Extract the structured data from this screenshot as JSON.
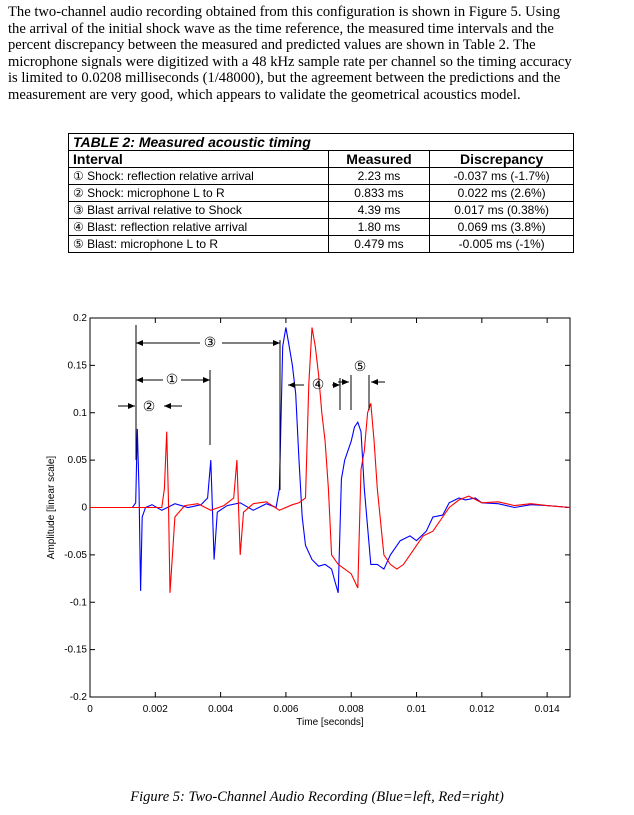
{
  "paragraph": {
    "lines": [
      "The two-channel audio recording obtained from this configuration is shown in Figure 5. Using",
      "the arrival of the initial shock wave as the time reference, the measured time intervals and the",
      "percent discrepancy between the measured and predicted values are shown in Table 2. The",
      "microphone signals were digitized with a 48 kHz sample rate per channel so the timing accuracy",
      "is limited to 0.0208 milliseconds (1/48000), but the agreement between the predictions and the",
      "measurement are very good, which appears to validate the geometrical acoustics model."
    ]
  },
  "table": {
    "title": "TABLE 2:  Measured acoustic timing",
    "columns": [
      "Interval",
      "Measured",
      "Discrepancy"
    ],
    "rows": [
      [
        "① Shock: reflection relative arrival",
        "2.23 ms",
        "-0.037 ms (-1.7%)"
      ],
      [
        "② Shock: microphone L to R",
        "0.833 ms",
        "0.022 ms (2.6%)"
      ],
      [
        "③ Blast arrival relative to Shock",
        "4.39 ms",
        "0.017 ms (0.38%)"
      ],
      [
        "④ Blast: reflection relative arrival",
        "1.80 ms",
        "0.069 ms (3.8%)"
      ],
      [
        "⑤ Blast: microphone L to R",
        "0.479 ms",
        "-0.005 ms (-1%)"
      ]
    ]
  },
  "chart_data": {
    "type": "line",
    "xlabel": "Time [seconds]",
    "ylabel": "Amplitude [linear scale]",
    "xlim": [
      0,
      0.0147
    ],
    "ylim": [
      -0.2,
      0.2
    ],
    "xticks": [
      0,
      0.002,
      0.004,
      0.006,
      0.008,
      0.01,
      0.012,
      0.014
    ],
    "yticks": [
      -0.2,
      -0.15,
      -0.1,
      -0.05,
      0,
      0.05,
      0.1,
      0.15,
      0.2
    ],
    "annotations": [
      "③",
      "①",
      "②",
      "④",
      "⑤"
    ],
    "series": [
      {
        "name": "Blue=left",
        "color": "#0000ff",
        "x": [
          0,
          0.0013,
          0.0014,
          0.00145,
          0.0015,
          0.00155,
          0.0016,
          0.0017,
          0.0019,
          0.0022,
          0.0026,
          0.003,
          0.0034,
          0.0036,
          0.0037,
          0.0038,
          0.0039,
          0.0042,
          0.0046,
          0.005,
          0.0054,
          0.0057,
          0.0058,
          0.0059,
          0.006,
          0.0061,
          0.0062,
          0.0063,
          0.0064,
          0.0065,
          0.0066,
          0.0068,
          0.007,
          0.0072,
          0.0074,
          0.0075,
          0.0076,
          0.0077,
          0.0078,
          0.008,
          0.0081,
          0.0082,
          0.0083,
          0.0084,
          0.0086,
          0.0088,
          0.009,
          0.0092,
          0.0095,
          0.0098,
          0.01,
          0.0103,
          0.0105,
          0.0108,
          0.011,
          0.0113,
          0.0115,
          0.0118,
          0.012,
          0.0125,
          0.013,
          0.0135,
          0.014,
          0.0147
        ],
        "values": [
          0,
          0,
          0.005,
          0.083,
          0.02,
          -0.088,
          -0.01,
          0,
          0.003,
          -0.003,
          0.004,
          0,
          0.003,
          0.01,
          0.05,
          -0.055,
          -0.005,
          0.002,
          0.005,
          -0.003,
          0.004,
          0,
          0.02,
          0.17,
          0.19,
          0.17,
          0.15,
          0.12,
          0.05,
          -0.01,
          -0.04,
          -0.055,
          -0.062,
          -0.06,
          -0.065,
          -0.078,
          -0.09,
          0.03,
          0.05,
          0.07,
          0.085,
          0.09,
          0.08,
          0.02,
          -0.06,
          -0.06,
          -0.065,
          -0.05,
          -0.035,
          -0.03,
          -0.035,
          -0.025,
          -0.01,
          -0.008,
          0.005,
          0.01,
          0.008,
          0.01,
          0.005,
          0.004,
          0,
          0.003,
          0.002,
          0
        ]
      },
      {
        "name": "Red=right",
        "color": "#ff0000",
        "x": [
          0,
          0.0022,
          0.00228,
          0.00235,
          0.0024,
          0.00245,
          0.0026,
          0.0029,
          0.0033,
          0.0037,
          0.0041,
          0.0044,
          0.0045,
          0.0046,
          0.0047,
          0.005,
          0.0054,
          0.0058,
          0.0062,
          0.0064,
          0.0066,
          0.0067,
          0.0068,
          0.0069,
          0.007,
          0.0071,
          0.0072,
          0.0073,
          0.0074,
          0.0076,
          0.0078,
          0.008,
          0.0082,
          0.0083,
          0.0084,
          0.0085,
          0.0086,
          0.0087,
          0.0088,
          0.009,
          0.0092,
          0.0094,
          0.0096,
          0.0098,
          0.01,
          0.0102,
          0.0105,
          0.0108,
          0.011,
          0.0113,
          0.0116,
          0.012,
          0.0125,
          0.013,
          0.0135,
          0.014,
          0.0147
        ],
        "values": [
          0,
          0,
          0.02,
          0.08,
          0.01,
          -0.09,
          -0.01,
          0.002,
          0.004,
          -0.003,
          0.002,
          0.01,
          0.05,
          -0.05,
          -0.005,
          0.004,
          0.006,
          -0.003,
          0.003,
          0.005,
          0.01,
          0.13,
          0.19,
          0.17,
          0.14,
          0.1,
          0.07,
          0.02,
          -0.05,
          -0.06,
          -0.065,
          -0.07,
          -0.085,
          0.04,
          0.06,
          0.1,
          0.11,
          0.07,
          0.02,
          -0.05,
          -0.06,
          -0.065,
          -0.06,
          -0.05,
          -0.04,
          -0.03,
          -0.025,
          -0.01,
          0,
          0.008,
          0.012,
          0.005,
          0.006,
          0.002,
          0.004,
          0.002,
          0
        ]
      }
    ]
  },
  "caption": "Figure 5:  Two-Channel Audio Recording (Blue=left, Red=right)"
}
